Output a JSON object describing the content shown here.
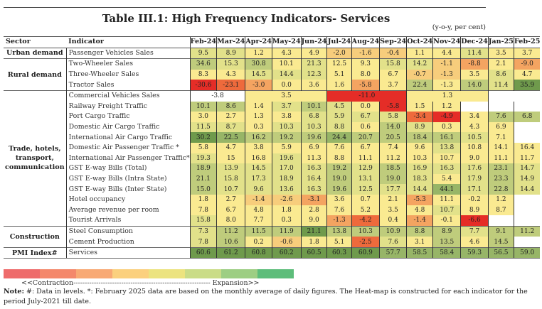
{
  "title": "Table III.1: High Frequency Indicators- Services",
  "unit": "(y-o-y, per cent)",
  "headers": {
    "sector": "Sector",
    "indicator": "Indicator"
  },
  "months": [
    "Feb-24",
    "Mar-24",
    "Apr-24",
    "May-24",
    "Jun-24",
    "Jul-24",
    "Aug-24",
    "Sep-24",
    "Oct-24",
    "Nov-24",
    "Dec-24",
    "Jan-25",
    "Feb-25"
  ],
  "palette": [
    "#e52d27",
    "#ee6a3c",
    "#f4a461",
    "#f7cd7c",
    "#faea91",
    "#e2e18a",
    "#bfcc7c",
    "#97b567",
    "#6f9a4c"
  ],
  "sections": [
    {
      "sector": "Urban demand",
      "rows": [
        {
          "indicator": "Passenger Vehicles Sales",
          "values": [
            "9.5",
            "8.9",
            "1.2",
            "4.3",
            "4.9",
            "-2.0",
            "-1.6",
            "-0.4",
            "1.1",
            "4.4",
            "11.4",
            "3.5",
            "3.7"
          ],
          "levels": [
            5,
            5,
            4,
            4,
            4,
            3,
            3,
            3,
            4,
            4,
            5,
            4,
            4
          ]
        }
      ]
    },
    {
      "sector": "Rural demand",
      "rows": [
        {
          "indicator": "Two-Wheeler Sales",
          "values": [
            "34.6",
            "15.3",
            "30.8",
            "10.1",
            "21.3",
            "12.5",
            "9.3",
            "15.8",
            "14.2",
            "-1.1",
            "-8.8",
            "2.1",
            "-9.0"
          ],
          "levels": [
            6,
            5,
            6,
            4,
            5,
            4,
            4,
            5,
            5,
            3,
            2,
            4,
            2
          ]
        },
        {
          "indicator": "Three-Wheeler Sales",
          "values": [
            "8.3",
            "4.3",
            "14.5",
            "14.4",
            "12.3",
            "5.1",
            "8.0",
            "6.7",
            "-0.7",
            "-1.3",
            "3.5",
            "8.6",
            "4.7"
          ],
          "levels": [
            4,
            4,
            5,
            5,
            5,
            4,
            4,
            4,
            3,
            3,
            4,
            5,
            4
          ]
        },
        {
          "indicator": "Tractor Sales",
          "values": [
            "-30.6",
            "-23.1",
            "-3.0",
            "0.0",
            "3.6",
            "1.6",
            "-5.8",
            "3.7",
            "22.4",
            "-1.3",
            "14.0",
            "11.4",
            "35.9"
          ],
          "levels": [
            0,
            1,
            2,
            4,
            4,
            4,
            2,
            4,
            6,
            4,
            6,
            5,
            8
          ]
        }
      ]
    },
    {
      "sector": "Trade, hotels, transport, communication",
      "rows": [
        {
          "indicator": "Commercial Vehicles Sales",
          "merged": [
            {
              "value": "-3.8",
              "span": 2,
              "level": null
            },
            {
              "value": "3.5",
              "span": 3,
              "level": 4
            },
            {
              "value": "-11.0",
              "span": 3,
              "level": 0
            },
            {
              "value": "1.3",
              "span": 3,
              "level": 4
            },
            {
              "value": "",
              "span": 2,
              "level": null
            }
          ]
        },
        {
          "indicator": "Railway Freight Traffic",
          "values": [
            "10.1",
            "8.6",
            "1.4",
            "3.7",
            "10.1",
            "4.5",
            "0.0",
            "-5.8",
            "1.5",
            "1.2",
            "",
            "",
            ""
          ],
          "levels": [
            6,
            6,
            4,
            5,
            6,
            5,
            4,
            0,
            4,
            4,
            null,
            null,
            null
          ]
        },
        {
          "indicator": "Port Cargo Traffic",
          "values": [
            "3.0",
            "2.7",
            "1.3",
            "3.8",
            "6.8",
            "5.9",
            "6.7",
            "5.8",
            "-3.4",
            "-4.9",
            "3.4",
            "7.6",
            "6.8"
          ],
          "levels": [
            4,
            4,
            4,
            4,
            5,
            5,
            5,
            5,
            1,
            0,
            4,
            6,
            6
          ]
        },
        {
          "indicator": "Domestic Air Cargo Traffic",
          "values": [
            "11.5",
            "8.7",
            "0.3",
            "10.3",
            "10.3",
            "8.8",
            "0.6",
            "14.0",
            "8.9",
            "0.3",
            "4.3",
            "6.9",
            ""
          ],
          "levels": [
            5,
            5,
            4,
            5,
            5,
            5,
            4,
            6,
            5,
            4,
            4,
            4,
            null
          ]
        },
        {
          "indicator": "International Air Cargo Traffic",
          "values": [
            "30.2",
            "22.5",
            "16.2",
            "19.2",
            "19.6",
            "24.4",
            "20.7",
            "20.5",
            "18.4",
            "16.1",
            "10.5",
            "7.1",
            ""
          ],
          "levels": [
            8,
            7,
            6,
            6,
            6,
            7,
            6,
            6,
            6,
            6,
            5,
            4,
            null
          ]
        },
        {
          "indicator": "Domestic Air Passenger Traffic *",
          "values": [
            "5.8",
            "4.7",
            "3.8",
            "5.9",
            "6.9",
            "7.6",
            "6.7",
            "7.4",
            "9.6",
            "13.8",
            "10.8",
            "14.1",
            "16.4"
          ],
          "levels": [
            4,
            4,
            4,
            4,
            4,
            4,
            4,
            4,
            4,
            5,
            4,
            4,
            4
          ]
        },
        {
          "indicator": "International Air Passenger Traffic*",
          "values": [
            "19.3",
            "15",
            "16.8",
            "19.6",
            "11.3",
            "8.8",
            "11.1",
            "11.2",
            "10.3",
            "10.7",
            "9.0",
            "11.1",
            "11.7"
          ],
          "levels": [
            5,
            4,
            4,
            5,
            4,
            4,
            4,
            4,
            4,
            4,
            4,
            4,
            4
          ]
        },
        {
          "indicator": "GST E-way Bills (Total)",
          "values": [
            "18.9",
            "13.9",
            "14.5",
            "17.0",
            "16.3",
            "19.2",
            "12.9",
            "18.5",
            "16.9",
            "16.3",
            "17.6",
            "23.1",
            "14.7"
          ],
          "levels": [
            6,
            5,
            5,
            5,
            5,
            6,
            5,
            6,
            5,
            5,
            5,
            6,
            5
          ]
        },
        {
          "indicator": "GST E-way Bills (Intra State)",
          "values": [
            "21.1",
            "15.8",
            "17.3",
            "18.9",
            "16.4",
            "19.0",
            "13.1",
            "19.0",
            "18.3",
            "5.4",
            "17.9",
            "23.3",
            "14.9"
          ],
          "levels": [
            6,
            5,
            5,
            5,
            5,
            6,
            5,
            6,
            5,
            4,
            5,
            6,
            5
          ]
        },
        {
          "indicator": "GST E-way Bills (Inter State)",
          "values": [
            "15.0",
            "10.7",
            "9.6",
            "13.6",
            "16.3",
            "19.6",
            "12.5",
            "17.7",
            "14.4",
            "44.1",
            "17.1",
            "22.8",
            "14.4"
          ],
          "levels": [
            6,
            5,
            5,
            5,
            5,
            6,
            5,
            5,
            5,
            7,
            5,
            6,
            5
          ]
        },
        {
          "indicator": "Hotel occupancy",
          "values": [
            "1.8",
            "2.7",
            "-1.4",
            "-2.6",
            "-3.1",
            "3.6",
            "0.7",
            "2.1",
            "-5.3",
            "11.1",
            "-0.2",
            "1.2",
            ""
          ],
          "levels": [
            4,
            4,
            3,
            3,
            2,
            4,
            4,
            4,
            2,
            4,
            4,
            4,
            null
          ]
        },
        {
          "indicator": "Average revenue per room",
          "values": [
            "7.8",
            "6.7",
            "4.8",
            "1.8",
            "2.8",
            "7.6",
            "5.2",
            "3.5",
            "4.8",
            "10.7",
            "8.9",
            "8.7",
            ""
          ],
          "levels": [
            4,
            4,
            4,
            4,
            4,
            4,
            4,
            4,
            4,
            5,
            4,
            4,
            null
          ]
        },
        {
          "indicator": "Tourist Arrivals",
          "values": [
            "15.8",
            "8.0",
            "7.7",
            "0.3",
            "9.0",
            "-1.3",
            "-4.2",
            "0.4",
            "-1.4",
            "-0.1",
            "-6.6",
            "",
            ""
          ],
          "levels": [
            5,
            4,
            4,
            4,
            4,
            2,
            1,
            4,
            2,
            4,
            0,
            null,
            null
          ]
        }
      ]
    },
    {
      "sector": "Construction",
      "rows": [
        {
          "indicator": "Steel Consumption",
          "values": [
            "7.3",
            "11.2",
            "11.5",
            "11.9",
            "21.1",
            "13.8",
            "10.3",
            "10.9",
            "8.8",
            "8.9",
            "7.7",
            "9.1",
            "11.2"
          ],
          "levels": [
            5,
            6,
            6,
            6,
            8,
            6,
            6,
            6,
            6,
            6,
            5,
            6,
            6
          ]
        },
        {
          "indicator": "Cement Production",
          "values": [
            "7.8",
            "10.6",
            "0.2",
            "-0.6",
            "1.8",
            "5.1",
            "-2.5",
            "7.6",
            "3.1",
            "13.5",
            "4.6",
            "14.5",
            ""
          ],
          "levels": [
            5,
            6,
            4,
            3,
            4,
            4,
            1,
            5,
            4,
            6,
            4,
            6,
            null
          ]
        }
      ]
    },
    {
      "sector": "PMI Index#",
      "rows": [
        {
          "indicator": "Services",
          "values": [
            "60.6",
            "61.2",
            "60.8",
            "60.2",
            "60.5",
            "60.3",
            "60.9",
            "57.7",
            "58.5",
            "58.4",
            "59.3",
            "56.5",
            "59.0"
          ],
          "levels": [
            8,
            8,
            8,
            8,
            8,
            8,
            8,
            7,
            7,
            7,
            7,
            7,
            7
          ]
        }
      ]
    }
  ],
  "legend": {
    "colors": [
      "#ee6b6b",
      "#f4886b",
      "#f8a974",
      "#fbd07e",
      "#ece37f",
      "#cadc87",
      "#9dce83",
      "#5dbd7a"
    ],
    "axis_text": "<<Contraction------------------------------------------------------------ Expansion>>"
  },
  "note": {
    "label": "Note:",
    "text": " #: Data in levels. *: February 2025 data are based on the monthly average of daily figures. The Heat-map is constructed for each indicator for the period July-2021 till date."
  }
}
